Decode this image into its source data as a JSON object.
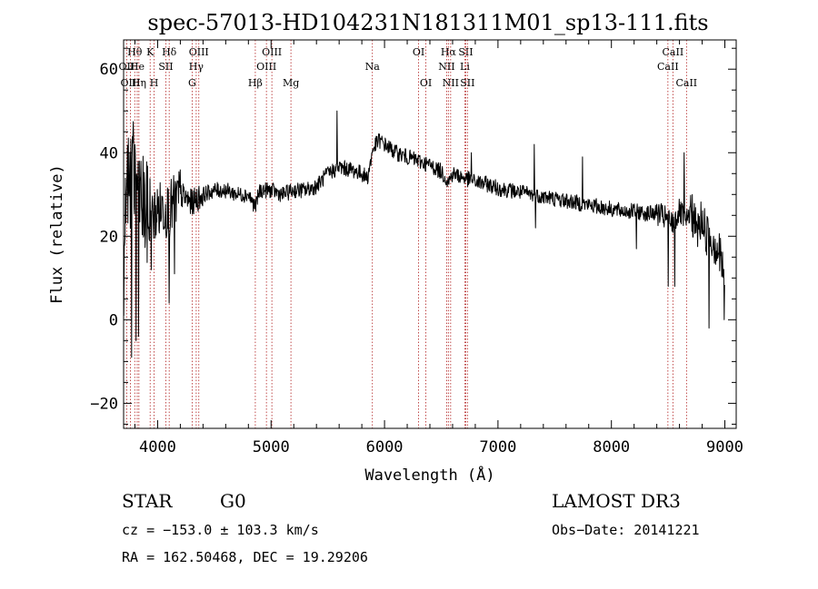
{
  "chart_data": {
    "type": "line",
    "title": "spec-57013-HD104231N181311M01_sp13-111.fits",
    "xlabel": "Wavelength (Å)",
    "ylabel": "Flux (relative)",
    "xlim": [
      3700,
      9100
    ],
    "ylim": [
      -26,
      67
    ],
    "x_ticks": [
      4000,
      5000,
      6000,
      7000,
      8000,
      9000
    ],
    "y_ticks": [
      -20,
      0,
      20,
      40,
      60
    ],
    "spectrum_anchors": [
      [
        3700,
        12
      ],
      [
        3720,
        25
      ],
      [
        3750,
        33
      ],
      [
        3780,
        38
      ],
      [
        3800,
        36
      ],
      [
        3850,
        29
      ],
      [
        3900,
        25
      ],
      [
        3950,
        24
      ],
      [
        4000,
        26
      ],
      [
        4050,
        27
      ],
      [
        4100,
        26
      ],
      [
        4150,
        28
      ],
      [
        4200,
        30
      ],
      [
        4300,
        28
      ],
      [
        4400,
        30
      ],
      [
        4500,
        31
      ],
      [
        4600,
        31
      ],
      [
        4700,
        30
      ],
      [
        4800,
        30
      ],
      [
        4861,
        27
      ],
      [
        4900,
        31
      ],
      [
        5000,
        31
      ],
      [
        5100,
        30
      ],
      [
        5200,
        31
      ],
      [
        5300,
        31
      ],
      [
        5400,
        32
      ],
      [
        5500,
        35
      ],
      [
        5600,
        36.5
      ],
      [
        5700,
        36
      ],
      [
        5800,
        35
      ],
      [
        5850,
        34
      ],
      [
        5900,
        41
      ],
      [
        5950,
        43
      ],
      [
        6000,
        42
      ],
      [
        6100,
        40
      ],
      [
        6200,
        39
      ],
      [
        6300,
        38
      ],
      [
        6400,
        37
      ],
      [
        6500,
        35.5
      ],
      [
        6563,
        33
      ],
      [
        6600,
        35
      ],
      [
        6700,
        34
      ],
      [
        6800,
        33
      ],
      [
        6900,
        32.5
      ],
      [
        7000,
        31.5
      ],
      [
        7100,
        31
      ],
      [
        7200,
        30.5
      ],
      [
        7300,
        30
      ],
      [
        7400,
        29.5
      ],
      [
        7500,
        29
      ],
      [
        7600,
        28.5
      ],
      [
        7700,
        28
      ],
      [
        7800,
        27.5
      ],
      [
        7900,
        27
      ],
      [
        8000,
        26.5
      ],
      [
        8100,
        26
      ],
      [
        8200,
        26
      ],
      [
        8300,
        25.5
      ],
      [
        8400,
        25.5
      ],
      [
        8498,
        24
      ],
      [
        8542,
        23
      ],
      [
        8600,
        26
      ],
      [
        8662,
        23
      ],
      [
        8700,
        27
      ],
      [
        8750,
        21
      ],
      [
        8800,
        24
      ],
      [
        8850,
        20
      ],
      [
        8900,
        19
      ],
      [
        8950,
        16
      ],
      [
        9000,
        10
      ]
    ],
    "spikes": [
      [
        5580,
        50
      ],
      [
        6765,
        40
      ],
      [
        7320,
        42
      ],
      [
        7745,
        39
      ],
      [
        8640,
        40
      ],
      [
        8828,
        20
      ]
    ],
    "dips": [
      [
        3770,
        -9
      ],
      [
        3810,
        -5
      ],
      [
        3830,
        -4
      ],
      [
        4100,
        4
      ],
      [
        4150,
        11
      ],
      [
        7330,
        22
      ],
      [
        8220,
        17
      ],
      [
        8500,
        8
      ],
      [
        8560,
        8
      ],
      [
        8860,
        -2
      ],
      [
        8995,
        0
      ]
    ],
    "line_markers": [
      {
        "label": "Hθ",
        "x": 3798,
        "row": 1
      },
      {
        "label": "OII",
        "x": 3727,
        "row": 2
      },
      {
        "label": "OIII",
        "x": 3760,
        "row": 3
      },
      {
        "label": "He",
        "x": 3820,
        "row": 2
      },
      {
        "label": "Hη",
        "x": 3835,
        "row": 3
      },
      {
        "label": "K",
        "x": 3934,
        "row": 1
      },
      {
        "label": "SII",
        "x": 4072,
        "row": 2
      },
      {
        "label": "H",
        "x": 3969,
        "row": 3
      },
      {
        "label": "Hδ",
        "x": 4102,
        "row": 1
      },
      {
        "label": "OIII",
        "x": 4363,
        "row": 1
      },
      {
        "label": "Hγ",
        "x": 4340,
        "row": 2
      },
      {
        "label": "G",
        "x": 4304,
        "row": 3
      },
      {
        "label": "Hβ",
        "x": 4861,
        "row": 3
      },
      {
        "label": "OIII",
        "x": 5007,
        "row": 1
      },
      {
        "label": "OIII",
        "x": 4959,
        "row": 2
      },
      {
        "label": "Mg",
        "x": 5175,
        "row": 3
      },
      {
        "label": "Na",
        "x": 5893,
        "row": 2
      },
      {
        "label": "OI",
        "x": 6300,
        "row": 1
      },
      {
        "label": "OI",
        "x": 6364,
        "row": 3
      },
      {
        "label": "Hα",
        "x": 6563,
        "row": 1
      },
      {
        "label": "NII",
        "x": 6548,
        "row": 2
      },
      {
        "label": "NII",
        "x": 6583,
        "row": 3
      },
      {
        "label": "SII",
        "x": 6716,
        "row": 1
      },
      {
        "label": "Li",
        "x": 6708,
        "row": 2
      },
      {
        "label": "SII",
        "x": 6731,
        "row": 3
      },
      {
        "label": "CaII",
        "x": 8542,
        "row": 1
      },
      {
        "label": "CaII",
        "x": 8498,
        "row": 2
      },
      {
        "label": "CaII",
        "x": 8662,
        "row": 3
      }
    ]
  },
  "info": {
    "object_class": "STAR",
    "subclass": "G0",
    "survey": "LAMOST DR3",
    "cz": "cz = −153.0 ± 103.3 km/s",
    "obs_date": "Obs−Date: 20141221",
    "coords": "RA = 162.50468, DEC =  19.29206"
  }
}
